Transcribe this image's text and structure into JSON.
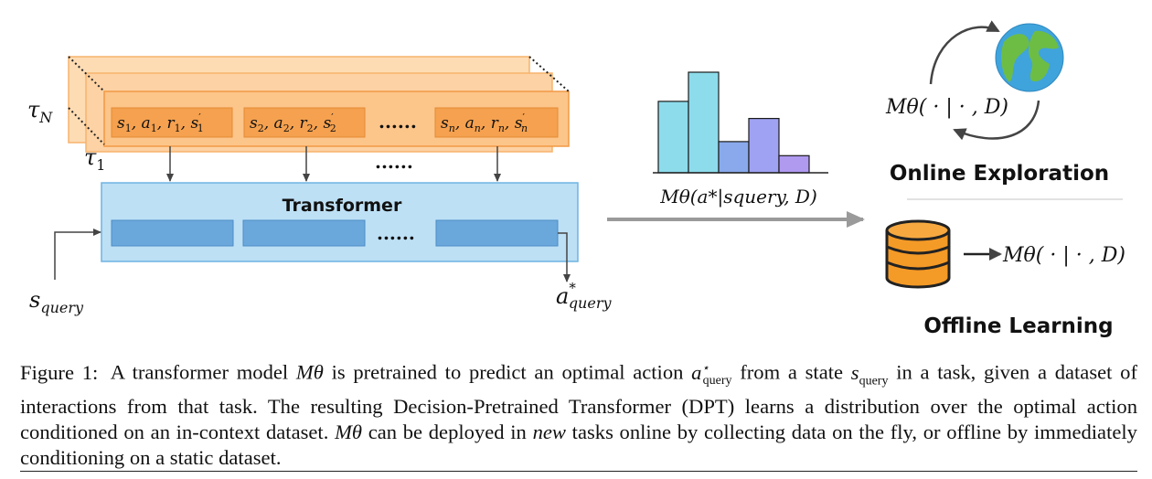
{
  "figure": {
    "trajectories": {
      "label_tau_n": "τ",
      "label_tau_n_sub": "N",
      "label_tau_1": "τ",
      "label_tau_1_sub": "1",
      "transitions": [
        {
          "s": "s",
          "sub": "1",
          "a": "a",
          "r": "r"
        },
        {
          "s": "s",
          "sub": "2",
          "a": "a",
          "r": "r"
        },
        {
          "s": "s",
          "sub": "n",
          "a": "a",
          "r": "r"
        }
      ],
      "ellipsis": "......"
    },
    "transformer": {
      "label": "Transformer",
      "ellipsis": "......"
    },
    "query": {
      "s_label": "s",
      "s_sub": "query",
      "a_label": "a",
      "a_sub": "query",
      "a_sup": "*"
    },
    "histogram": {
      "bar_colors": [
        "#8ddcec",
        "#8ddcec",
        "#89a9ec",
        "#9fa2f2",
        "#b09af0"
      ],
      "relative_heights": [
        0.71,
        1.0,
        0.31,
        0.54,
        0.17
      ],
      "label": "Mθ(a*|squery, D)"
    },
    "online": {
      "title": "Online Exploration",
      "model_label": "Mθ( · | · , D)",
      "icon": "globe-icon"
    },
    "offline": {
      "title": "Offline Learning",
      "model_label": "Mθ( · | · , D)",
      "icon": "database-icon"
    }
  },
  "caption": {
    "label": "Figure 1:",
    "text_1": "A transformer model",
    "text_2": "is pretrained to predict an optimal action",
    "text_3": "from a state",
    "text_4": "in a task, given a dataset of interactions from that task. The resulting Decision-Pretrained Transformer (DPT) learns a distribution over the optimal action conditioned on an in-context dataset.",
    "text_5": "can be deployed in",
    "text_new": "new",
    "text_6": "tasks online by collecting data on the fly, or offline by immediately conditioning on a static dataset.",
    "m_theta": "Mθ",
    "a_query": "a",
    "a_query_sup": "⋆",
    "a_query_sub": "query",
    "s_query": "s",
    "s_query_sub": "query"
  }
}
